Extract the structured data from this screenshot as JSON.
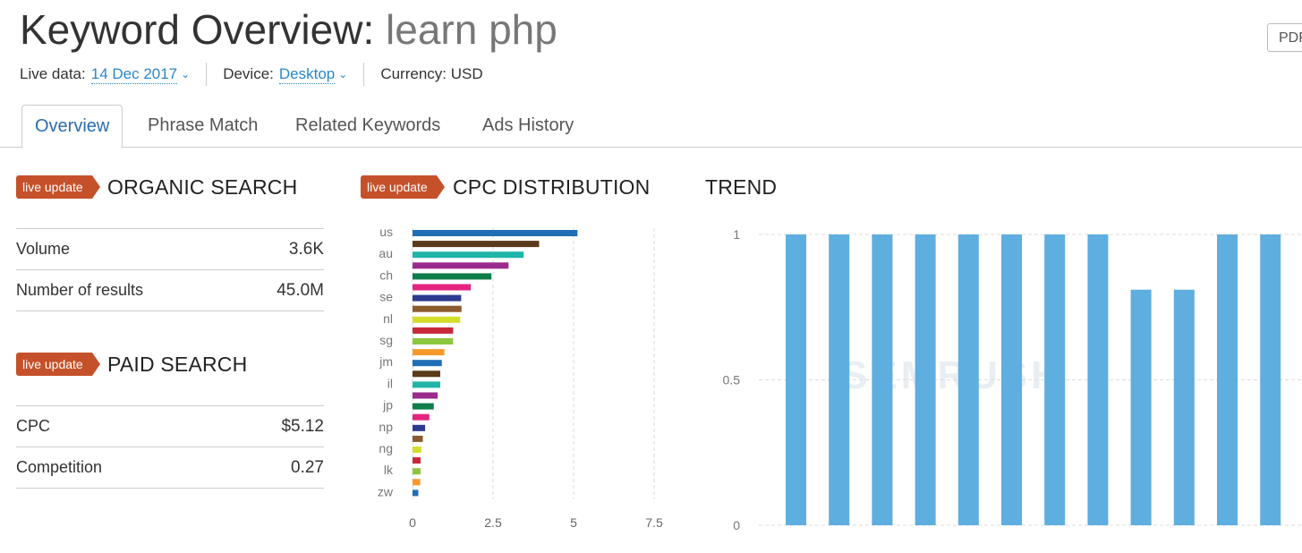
{
  "header": {
    "title_prefix": "Keyword Overview:",
    "keyword": "learn php",
    "pdf_label": "PDF",
    "live_data_label": "Live data:",
    "live_data_value": "14 Dec 2017",
    "device_label": "Device:",
    "device_value": "Desktop",
    "currency_label": "Currency: USD"
  },
  "tabs": [
    {
      "label": "Overview"
    },
    {
      "label": "Phrase Match"
    },
    {
      "label": "Related Keywords"
    },
    {
      "label": "Ads History"
    }
  ],
  "badge_label": "live update",
  "organic": {
    "title": "ORGANIC SEARCH",
    "rows": [
      {
        "label": "Volume",
        "value": "3.6K"
      },
      {
        "label": "Number of results",
        "value": "45.0M"
      }
    ]
  },
  "paid": {
    "title": "PAID SEARCH",
    "rows": [
      {
        "label": "CPC",
        "value": "$5.12"
      },
      {
        "label": "Competition",
        "value": "0.27"
      }
    ]
  },
  "cpc_title": "CPC DISTRIBUTION",
  "trend_title": "TREND",
  "watermark": "SEMRUSH",
  "chart_data": [
    {
      "type": "bar",
      "orientation": "horizontal",
      "title": "CPC DISTRIBUTION",
      "categories": [
        "us",
        "",
        "au",
        "",
        "ch",
        "",
        "se",
        "",
        "nl",
        "",
        "sg",
        "",
        "jm",
        "",
        "il",
        "",
        "jp",
        "",
        "np",
        "",
        "ng",
        "",
        "lk",
        "",
        "zw"
      ],
      "values": [
        5.12,
        3.93,
        3.45,
        2.98,
        2.45,
        1.81,
        1.51,
        1.52,
        1.48,
        1.26,
        1.26,
        0.99,
        0.91,
        0.86,
        0.86,
        0.78,
        0.66,
        0.52,
        0.39,
        0.32,
        0.27,
        0.25,
        0.25,
        0.24,
        0.18
      ],
      "colors": [
        "#1f6fb5",
        "#5b3a1a",
        "#1fb5a8",
        "#9b2a8f",
        "#0e7d4a",
        "#e52480",
        "#2c3a8f",
        "#8c5a2e",
        "#d4de2a",
        "#c8283a",
        "#8cc63f",
        "#f59a2a",
        "#1f6fb5",
        "#5b3a1a",
        "#1fb5a8",
        "#9b2a8f",
        "#0e7d4a",
        "#e52480",
        "#2c3a8f",
        "#8c5a2e",
        "#d4de2a",
        "#c8283a",
        "#8cc63f",
        "#f59a2a",
        "#1f6fb5"
      ],
      "xticks": [
        0,
        2.5,
        5,
        7.5
      ],
      "xlim": [
        0,
        7.5
      ],
      "grid": true
    },
    {
      "type": "bar",
      "title": "TREND",
      "values": [
        1,
        1,
        1,
        1,
        1,
        1,
        1,
        1,
        0.81,
        0.81,
        1,
        1
      ],
      "yticks": [
        0,
        0.5,
        1
      ],
      "ylim": [
        0,
        1
      ],
      "color": "#5eaee0",
      "grid": true
    }
  ]
}
